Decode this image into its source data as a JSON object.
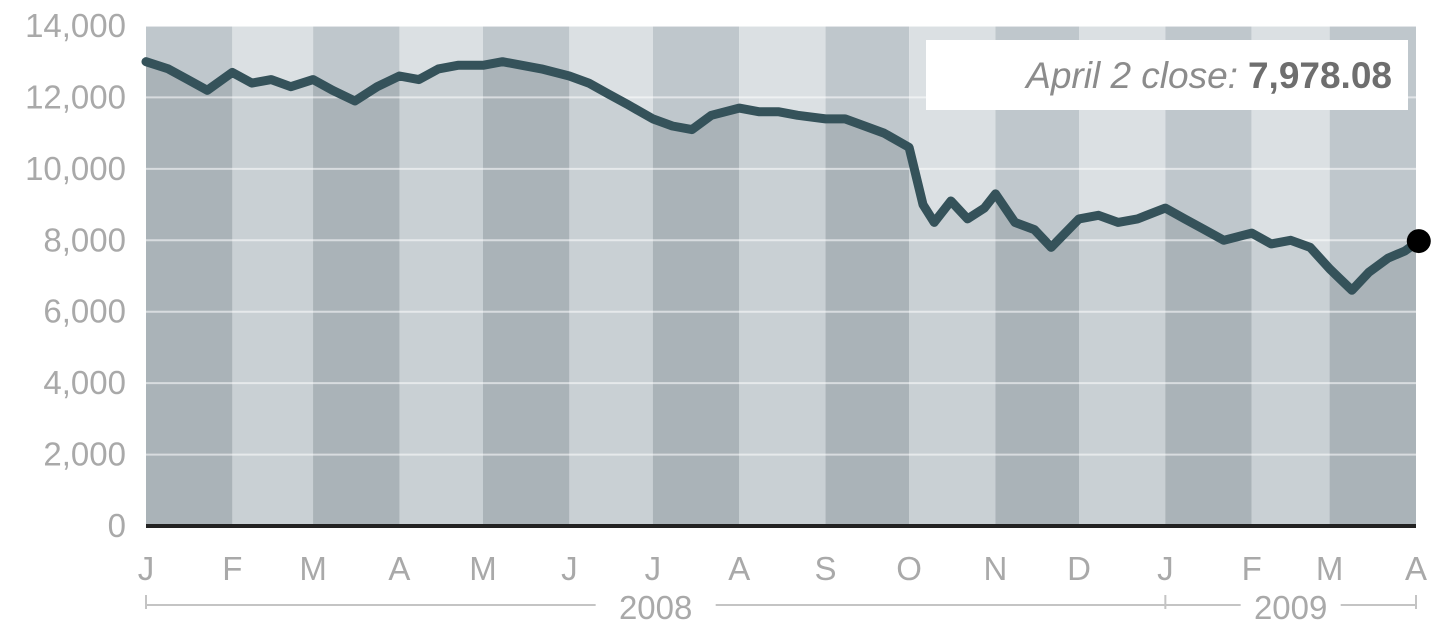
{
  "chart_data": {
    "type": "line",
    "title": "",
    "xlabel": "",
    "ylabel": "",
    "ylim": [
      0,
      14000
    ],
    "y_ticks": [
      "14,000",
      "12,000",
      "10,000",
      "8,000",
      "6,000",
      "4,000",
      "2,000",
      "0"
    ],
    "y_tick_values": [
      14000,
      12000,
      10000,
      8000,
      6000,
      4000,
      2000,
      0
    ],
    "months": [
      "J",
      "F",
      "M",
      "A",
      "M",
      "J",
      "J",
      "A",
      "S",
      "O",
      "N",
      "D",
      "J",
      "F",
      "M",
      "A"
    ],
    "years": [
      "2008",
      "2009"
    ],
    "grid": true,
    "annotation": {
      "prefix": "April 2 close:",
      "value": "7,978.08"
    },
    "colors": {
      "line": "#35525a",
      "band_dark": "#bfc7cc",
      "band_light": "#dbe0e3",
      "fill_dark": "#aab3b8",
      "fill_light": "#c9d0d4",
      "marker": "#000000"
    },
    "series": [
      {
        "x": [
          "2008-01-01",
          "2008-01-09",
          "2008-01-16",
          "2008-01-23",
          "2008-02-01",
          "2008-02-08",
          "2008-02-15",
          "2008-02-22",
          "2008-03-01",
          "2008-03-08",
          "2008-03-16",
          "2008-03-24",
          "2008-04-01",
          "2008-04-08",
          "2008-04-15",
          "2008-04-22",
          "2008-05-01",
          "2008-05-08",
          "2008-05-15",
          "2008-05-22",
          "2008-06-01",
          "2008-06-08",
          "2008-06-15",
          "2008-06-22",
          "2008-07-01",
          "2008-07-08",
          "2008-07-15",
          "2008-07-22",
          "2008-08-01",
          "2008-08-08",
          "2008-08-15",
          "2008-08-22",
          "2008-09-01",
          "2008-09-08",
          "2008-09-15",
          "2008-09-22",
          "2008-10-01",
          "2008-10-06",
          "2008-10-10",
          "2008-10-16",
          "2008-10-22",
          "2008-10-28",
          "2008-11-01",
          "2008-11-08",
          "2008-11-15",
          "2008-11-21",
          "2008-12-01",
          "2008-12-08",
          "2008-12-15",
          "2008-12-22",
          "2009-01-01",
          "2009-01-08",
          "2009-01-15",
          "2009-01-22",
          "2009-02-01",
          "2009-02-08",
          "2009-02-15",
          "2009-02-22",
          "2009-03-01",
          "2009-03-05",
          "2009-03-09",
          "2009-03-15",
          "2009-03-22",
          "2009-03-28",
          "2009-04-02"
        ],
        "values": [
          13000,
          12800,
          12500,
          12200,
          12700,
          12400,
          12500,
          12300,
          12500,
          12200,
          11900,
          12300,
          12600,
          12500,
          12800,
          12900,
          12900,
          13000,
          12900,
          12800,
          12600,
          12400,
          12100,
          11800,
          11400,
          11200,
          11100,
          11500,
          11700,
          11600,
          11600,
          11500,
          11400,
          11400,
          11200,
          11000,
          10600,
          9000,
          8500,
          9100,
          8600,
          8900,
          9300,
          8500,
          8300,
          7800,
          8600,
          8700,
          8500,
          8600,
          8900,
          8600,
          8300,
          8000,
          8200,
          7900,
          8000,
          7800,
          7200,
          6900,
          6600,
          7100,
          7500,
          7700,
          7978
        ]
      }
    ]
  }
}
